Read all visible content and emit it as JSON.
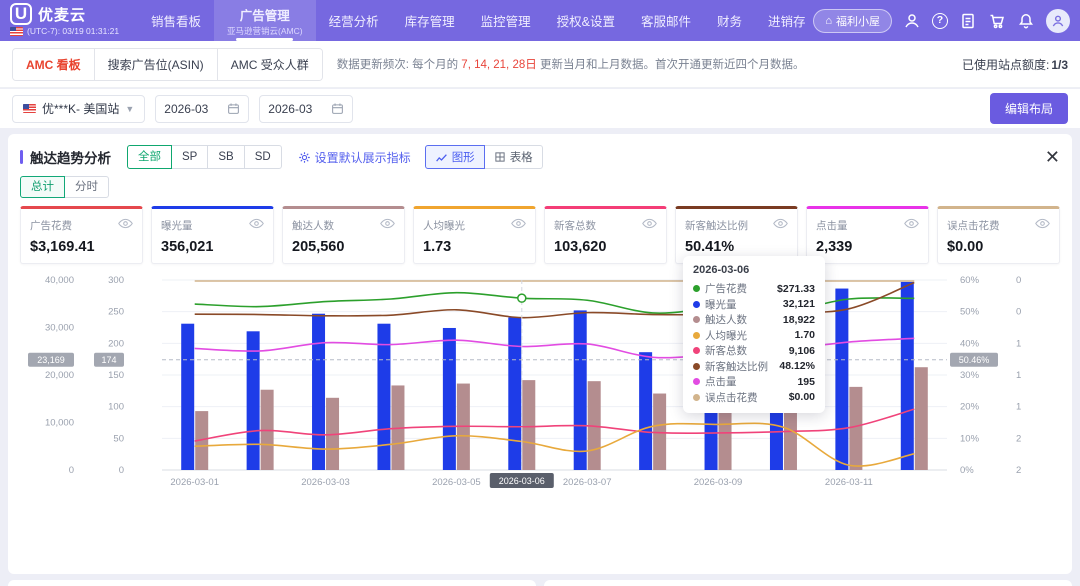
{
  "header": {
    "logo_mark": "U",
    "logo_text": "优麦云",
    "clock": "(UTC-7): 03/19 01:31:21",
    "nav": [
      {
        "label": "销售看板"
      },
      {
        "label": "广告管理",
        "sub": "亚马逊营销云(AMC)"
      },
      {
        "label": "经营分析"
      },
      {
        "label": "库存管理"
      },
      {
        "label": "监控管理"
      },
      {
        "label": "授权&设置"
      },
      {
        "label": "客服邮件"
      },
      {
        "label": "财务"
      },
      {
        "label": "进销存"
      }
    ],
    "welfare_label": "福利小屋"
  },
  "tabbar": {
    "tabs": [
      {
        "label": "AMC 看板"
      },
      {
        "label": "搜索广告位(ASIN)"
      },
      {
        "label": "AMC 受众人群"
      }
    ],
    "note": {
      "prefix": "数据更新频次: 每个月的 ",
      "dates": "7, 14, 21, 28日",
      "mid": " 更新当月和上月数据。",
      "suffix": "首次开通更新近四个月数据。"
    },
    "quota_label": "已使用站点额度:",
    "quota_value": "1/3"
  },
  "filterbar": {
    "site": "优***K- 美国站",
    "date_from": "2026-03",
    "date_to": "2026-03",
    "edit_layout": "编辑布局"
  },
  "panel": {
    "title": "触达趋势分析",
    "scopes": [
      {
        "label": "全部"
      },
      {
        "label": "SP"
      },
      {
        "label": "SB"
      },
      {
        "label": "SD"
      }
    ],
    "set_metrics_label": "设置默认展示指标",
    "view_graph": "图形",
    "view_table": "表格",
    "subtab_total": "总计",
    "subtab_hourly": "分时"
  },
  "metrics": [
    {
      "label": "广告花费",
      "value": "$3,169.41",
      "color": "#e5484d"
    },
    {
      "label": "曝光量",
      "value": "356,021",
      "color": "#1e3ce8"
    },
    {
      "label": "触达人数",
      "value": "205,560",
      "color": "#b48d8f"
    },
    {
      "label": "人均曝光",
      "value": "1.73",
      "color": "#f0a52f"
    },
    {
      "label": "新客总数",
      "value": "103,620",
      "color": "#f43d77"
    },
    {
      "label": "新客触达比例",
      "value": "50.41%",
      "color": "#7a3b22"
    },
    {
      "label": "点击量",
      "value": "2,339",
      "color": "#e833e8"
    },
    {
      "label": "误点击花费",
      "value": "$0.00",
      "color": "#d2b48c"
    }
  ],
  "tooltip": {
    "title": "2026-03-06",
    "rows": [
      {
        "label": "广告花费",
        "value": "$271.33",
        "color": "#2ca02c"
      },
      {
        "label": "曝光量",
        "value": "32,121",
        "color": "#1e3ce8"
      },
      {
        "label": "触达人数",
        "value": "18,922",
        "color": "#b48d8f"
      },
      {
        "label": "人均曝光",
        "value": "1.70",
        "color": "#e8a93c"
      },
      {
        "label": "新客总数",
        "value": "9,106",
        "color": "#f0437a"
      },
      {
        "label": "新客触达比例",
        "value": "48.12%",
        "color": "#8a4a28"
      },
      {
        "label": "点击量",
        "value": "195",
        "color": "#e24ce2"
      },
      {
        "label": "误点击花费",
        "value": "$0.00",
        "color": "#d2b48c"
      }
    ]
  },
  "chart_data": {
    "type": "bar",
    "subtype": "combo-bar-line-trend, values estimated from pixels",
    "x": [
      "2026-03-01",
      "2026-03-02",
      "2026-03-03",
      "2026-03-04",
      "2026-03-05",
      "2026-03-06",
      "2026-03-07",
      "2026-03-08",
      "2026-03-09",
      "2026-03-10",
      "2026-03-11",
      "2026-03-12"
    ],
    "x_ticks_shown": [
      "2026-03-01",
      "2026-03-03",
      "2026-03-05",
      "2026-03-07",
      "2026-03-09",
      "2026-03-11"
    ],
    "series": [
      {
        "name": "曝光量",
        "kind": "bar",
        "axis": "count",
        "color": "#1e3ce8",
        "values": [
          30800,
          29200,
          32900,
          30800,
          29900,
          32121,
          33600,
          24800,
          16200,
          17900,
          38200,
          39600
        ]
      },
      {
        "name": "触达人数",
        "kind": "bar",
        "axis": "count",
        "color": "#b48d8f",
        "values": [
          12400,
          16900,
          15200,
          17800,
          18200,
          18922,
          18700,
          16100,
          15900,
          16300,
          17500,
          21638
        ]
      },
      {
        "name": "新客总数",
        "kind": "line",
        "axis": "count",
        "color": "#f0437a",
        "values": [
          6100,
          8300,
          7400,
          8700,
          9200,
          9106,
          9300,
          7900,
          7800,
          8100,
          8900,
          12814
        ]
      },
      {
        "name": "广告花费",
        "kind": "line",
        "axis": "v300",
        "color": "#2ca02c",
        "values": [
          262,
          258,
          266,
          270,
          280,
          271.33,
          268,
          248,
          255,
          250,
          270,
          271.08
        ]
      },
      {
        "name": "点击量",
        "kind": "line",
        "axis": "v300",
        "color": "#e24ce2",
        "values": [
          192,
          188,
          201,
          198,
          205,
          195,
          199,
          178,
          183,
          190,
          202,
          208
        ]
      },
      {
        "name": "新客触达比例",
        "kind": "line",
        "axis": "pct",
        "color": "#8a4a28",
        "values": [
          49.2,
          49.1,
          48.7,
          48.9,
          50.6,
          48.12,
          49.7,
          49.1,
          49.1,
          49.7,
          50.9,
          59.2
        ]
      },
      {
        "name": "人均曝光",
        "kind": "line",
        "axis": "inv2",
        "color": "#e8a93c",
        "values": [
          1.75,
          1.73,
          1.78,
          1.73,
          1.64,
          1.7,
          1.8,
          1.54,
          1.52,
          1.55,
          1.95,
          1.83
        ]
      },
      {
        "name": "误点击花费",
        "kind": "line",
        "axis": "inv2",
        "color": "#d2b48c",
        "values": [
          0,
          0,
          0,
          0,
          0,
          0,
          0,
          0,
          0,
          0,
          0,
          0
        ]
      }
    ],
    "axes": {
      "left_outer": {
        "labels": [
          "40,000",
          "30,000",
          "20,000",
          "10,000",
          "0"
        ],
        "min": 0,
        "max": 40000
      },
      "left_inner": {
        "labels": [
          "300",
          "250",
          "200",
          "150",
          "100",
          "50",
          "0"
        ],
        "min": 0,
        "max": 300
      },
      "right_inner": {
        "labels": [
          "60%",
          "50%",
          "40%",
          "30%",
          "20%",
          "10%",
          "0%"
        ],
        "min": 0,
        "max": 60
      },
      "right_outer": {
        "labels": [
          "0",
          "0",
          "1",
          "1",
          "1",
          "2",
          "2"
        ],
        "min": 0,
        "max": 2,
        "inverted": true
      }
    },
    "pointer": {
      "x_chip": "2026-03-06",
      "chips": {
        "left_outer": "23,169",
        "left_inner": "174",
        "right_inner": "50.46%"
      },
      "line_frac": 0.58,
      "hover_index": 5,
      "hover_series": "广告花费"
    },
    "grid": true,
    "legend": "hidden"
  }
}
